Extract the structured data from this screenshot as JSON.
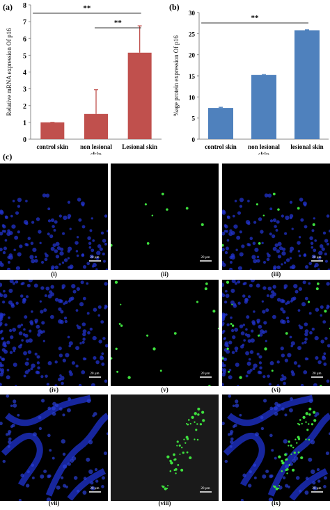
{
  "panels": {
    "a": "(a)",
    "b": "(b)",
    "c": "(c)"
  },
  "chart_data": [
    {
      "type": "bar",
      "categories": [
        "control skin",
        "non lesional skin",
        "Lesional skin"
      ],
      "values": [
        1.0,
        1.5,
        5.15
      ],
      "error_upper": [
        0.0,
        1.45,
        1.6
      ],
      "ylabel": "Relative mRNA  expression Of p16",
      "ylim": [
        0,
        8
      ],
      "yticks": [
        0,
        1,
        2,
        3,
        4,
        5,
        6,
        7,
        8
      ],
      "color": "#c0504d",
      "significance": [
        {
          "from": 0,
          "to": 2,
          "label": "**"
        },
        {
          "from": 1,
          "to": 2,
          "label": "**"
        }
      ]
    },
    {
      "type": "bar",
      "categories": [
        "control skin",
        "non lesional skin",
        "lesional skin"
      ],
      "values": [
        7.4,
        15.2,
        25.8
      ],
      "error_upper": [
        0.15,
        0.1,
        0.1
      ],
      "ylabel": "%age protein  expression Of p16",
      "ylim": [
        0,
        30
      ],
      "yticks": [
        0,
        5,
        10,
        15,
        20,
        25,
        30
      ],
      "color": "#4f81bd",
      "significance": [
        {
          "from": 0,
          "to": 2,
          "label": "**"
        }
      ]
    }
  ],
  "micrographs": [
    {
      "label": "(i)",
      "channel": "blue",
      "scale": "20 µm"
    },
    {
      "label": "(ii)",
      "channel": "green",
      "scale": "20 µm"
    },
    {
      "label": "(iii)",
      "channel": "merge",
      "scale": "20 µm"
    },
    {
      "label": "(iv)",
      "channel": "blue",
      "scale": "20 µm"
    },
    {
      "label": "(v)",
      "channel": "green",
      "scale": "20 µm"
    },
    {
      "label": "(vi)",
      "channel": "merge",
      "scale": "20 µm"
    },
    {
      "label": "(vii)",
      "channel": "blue",
      "scale": "20 µm"
    },
    {
      "label": "(viii)",
      "channel": "green",
      "scale": "20 µm"
    },
    {
      "label": "(ix)",
      "channel": "merge",
      "scale": "20 µm"
    }
  ]
}
